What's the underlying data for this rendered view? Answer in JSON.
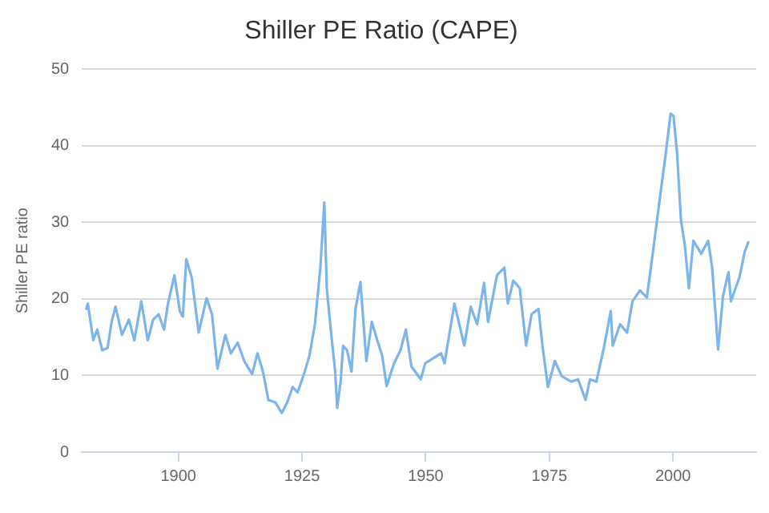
{
  "chart_data": {
    "type": "line",
    "title": "Shiller PE Ratio (CAPE)",
    "ylabel": "Shiller PE ratio",
    "xlim": [
      1880.5,
      2016.8
    ],
    "xticks": [
      1900,
      1925,
      1950,
      1975,
      2000
    ],
    "ylim": [
      0,
      50
    ],
    "yticks": [
      0,
      10,
      20,
      30,
      40,
      50
    ],
    "grid": "y",
    "legend": false,
    "marker": "none",
    "line_style": "solid",
    "series": [
      {
        "color": "#7cb5ec",
        "x": [
          1881.4,
          1881.7,
          1882.8,
          1883.6,
          1884.6,
          1885.7,
          1886.5,
          1887.3,
          1888.6,
          1890.0,
          1891.1,
          1892.5,
          1893.8,
          1894.9,
          1896.0,
          1897.1,
          1897.9,
          1899.2,
          1900.3,
          1900.9,
          1901.6,
          1902.7,
          1904.1,
          1905.7,
          1906.8,
          1907.9,
          1909.5,
          1910.6,
          1912.0,
          1913.3,
          1914.9,
          1916.0,
          1917.1,
          1918.2,
          1919.6,
          1920.9,
          1922.0,
          1923.1,
          1924.1,
          1925.4,
          1926.5,
          1927.6,
          1928.7,
          1929.5,
          1930.0,
          1930.8,
          1931.7,
          1932.1,
          1932.8,
          1933.3,
          1934.1,
          1935.0,
          1935.8,
          1936.8,
          1938.0,
          1939.1,
          1940.2,
          1941.2,
          1942.1,
          1943.6,
          1944.9,
          1946.0,
          1947.1,
          1949.0,
          1949.9,
          1951.4,
          1953.1,
          1953.8,
          1955.8,
          1957.8,
          1959.1,
          1960.4,
          1961.8,
          1962.6,
          1964.4,
          1965.9,
          1966.6,
          1967.7,
          1969.0,
          1970.3,
          1971.4,
          1972.8,
          1973.6,
          1974.7,
          1976.1,
          1977.5,
          1979.4,
          1980.8,
          1982.3,
          1983.2,
          1984.5,
          1986.0,
          1987.4,
          1987.8,
          1989.3,
          1990.7,
          1991.8,
          1993.3,
          1994.7,
          1995.8,
          1997.3,
          1998.4,
          1999.5,
          2000.1,
          2000.8,
          2001.6,
          2002.4,
          2003.2,
          2004.1,
          2005.7,
          2007.1,
          2007.9,
          2009.1,
          2010.1,
          2011.2,
          2011.7,
          2013.4,
          2014.5,
          2015.2
        ],
        "values": [
          18.7,
          19.4,
          14.6,
          16.0,
          13.3,
          13.6,
          17.0,
          19.0,
          15.3,
          17.3,
          14.6,
          19.7,
          14.6,
          17.3,
          18.0,
          16.0,
          19.4,
          23.1,
          18.4,
          17.7,
          25.2,
          22.8,
          15.6,
          20.1,
          18.0,
          10.9,
          15.3,
          12.9,
          14.3,
          11.9,
          10.2,
          12.9,
          10.5,
          6.8,
          6.5,
          5.1,
          6.5,
          8.5,
          7.8,
          10.2,
          12.6,
          16.7,
          24.1,
          32.6,
          21.4,
          16.0,
          10.5,
          5.8,
          9.2,
          13.9,
          13.3,
          10.5,
          18.7,
          22.2,
          11.9,
          17.0,
          14.6,
          12.6,
          8.6,
          11.6,
          13.3,
          16.0,
          11.2,
          9.5,
          11.6,
          12.2,
          12.9,
          11.6,
          19.4,
          13.9,
          19.0,
          16.7,
          22.1,
          17.0,
          23.1,
          24.1,
          19.4,
          22.4,
          21.4,
          13.9,
          18.0,
          18.7,
          13.9,
          8.5,
          11.9,
          9.9,
          9.2,
          9.5,
          6.8,
          9.5,
          9.2,
          13.6,
          18.4,
          13.9,
          16.7,
          15.6,
          19.7,
          21.1,
          20.2,
          25.5,
          33.0,
          38.4,
          44.2,
          43.9,
          39.1,
          30.3,
          26.9,
          21.4,
          27.6,
          25.9,
          27.6,
          24.1,
          13.4,
          20.4,
          23.5,
          19.7,
          22.8,
          26.2,
          27.4
        ]
      }
    ]
  }
}
